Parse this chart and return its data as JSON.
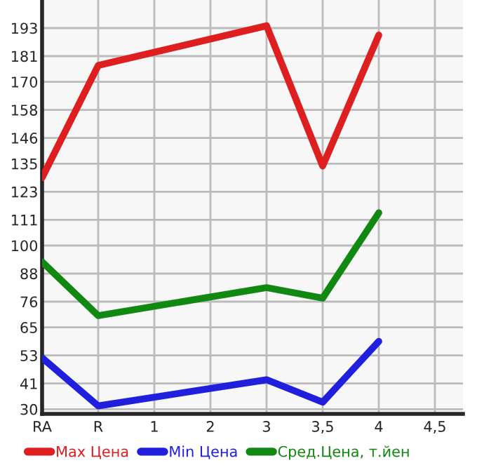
{
  "chart_data": {
    "type": "line",
    "categories": [
      "RA",
      "R",
      "1",
      "2",
      "3",
      "3,5",
      "4",
      "4,5"
    ],
    "series": [
      {
        "name": "Max Цена",
        "color": "#dd1f1f",
        "values": [
          129,
          177,
          null,
          null,
          194,
          134,
          190,
          null
        ]
      },
      {
        "name": "Min Цена",
        "color": "#1f1fdd",
        "values": [
          52,
          31.4,
          null,
          null,
          42.6,
          33,
          59,
          null
        ]
      },
      {
        "name": "Сред.Цена, т.йен",
        "color": "#118811",
        "values": [
          93,
          70,
          null,
          null,
          82,
          77.5,
          114,
          null
        ]
      }
    ],
    "ylim": [
      28,
      205
    ],
    "yticks": [
      30,
      41,
      53,
      65,
      76,
      88,
      100,
      111,
      123,
      135,
      146,
      158,
      170,
      181,
      193
    ],
    "grid": true,
    "legend": "bottom",
    "marker": "none",
    "line_style": "solid"
  }
}
